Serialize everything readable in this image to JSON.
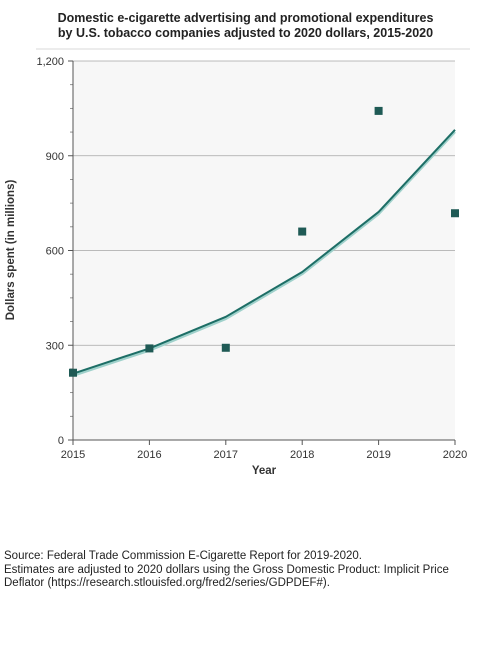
{
  "chart_data": {
    "type": "line",
    "title_lines": [
      "Domestic e-cigarette advertising and promotional expenditures",
      "by U.S. tobacco companies adjusted to 2020 dollars, 2015-2020"
    ],
    "xlabel": "Year",
    "ylabel": "Dollars spent (in millions)",
    "categories": [
      "2015",
      "2016",
      "2017",
      "2018",
      "2019",
      "2020"
    ],
    "yticks": [
      "0",
      "300",
      "600",
      "900",
      "1,200"
    ],
    "ylim": [
      0,
      1200
    ],
    "grid": true,
    "series": [
      {
        "mark": "line",
        "values": [
          210,
          290,
          390,
          532,
          722,
          982
        ]
      },
      {
        "mark": "square",
        "values": [
          213,
          290,
          292,
          660,
          1042,
          718
        ]
      }
    ],
    "colors": {
      "line": "#1d6e66",
      "marker": "#1f5a55",
      "plot_background": "#f7f7f7",
      "gridline": "#a6a6a6"
    }
  },
  "notes": {
    "source": "Source: Federal Trade Commission E-Cigarette Report for 2019-2020.",
    "estimates": "Estimates are adjusted to 2020 dollars using the Gross Domestic Product: Implicit Price Deflator (https://research.stlouisfed.org/fred2/series/GDPDEF#)."
  }
}
